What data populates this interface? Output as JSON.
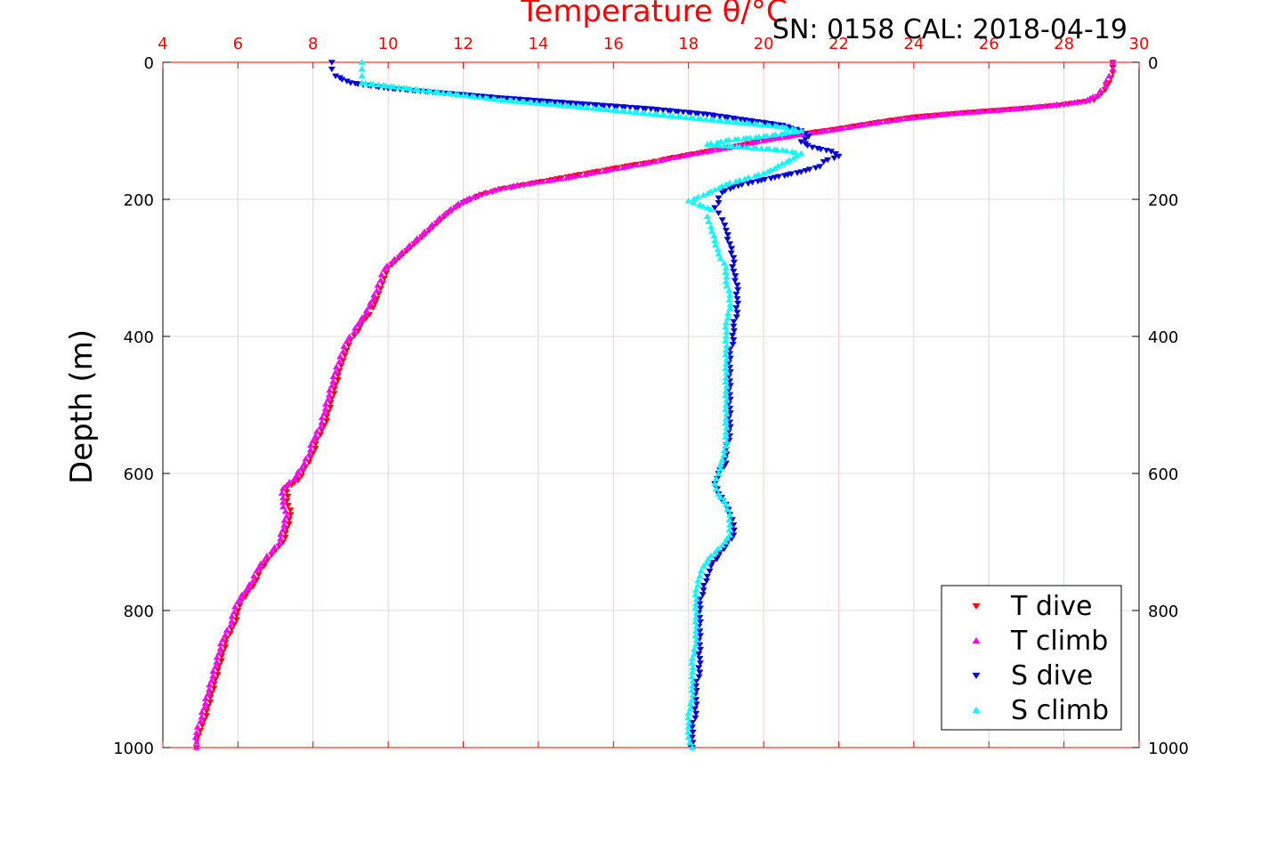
{
  "chart_data": {
    "type": "scatter",
    "title": "SN: 0158  CAL: 2018-04-19",
    "xlabel": "Temperature θ/°C",
    "ylabel": "Depth (m)",
    "xlim": [
      4,
      30
    ],
    "ylim": [
      0,
      1000
    ],
    "y_reversed": true,
    "xticks": [
      "4",
      "6",
      "8",
      "10",
      "12",
      "14",
      "16",
      "18",
      "20",
      "22",
      "24",
      "26",
      "28",
      "30"
    ],
    "yticks": [
      "0",
      "200",
      "400",
      "600",
      "800",
      "1000"
    ],
    "grid": true,
    "x_axis_position": "top",
    "legend_position": "bottom-right",
    "colors": {
      "axis_top": "#ff0000",
      "grid": "#dcdcdc",
      "grid_x": "#f5cccc"
    },
    "series": [
      {
        "name": "T dive",
        "color": "#ff0000",
        "marker": "triangle-down",
        "points": [
          [
            29.3,
            0
          ],
          [
            29.3,
            15
          ],
          [
            29.2,
            30
          ],
          [
            29.0,
            45
          ],
          [
            28.8,
            55
          ],
          [
            28.0,
            62
          ],
          [
            27.0,
            67
          ],
          [
            25.5,
            73
          ],
          [
            24.0,
            80
          ],
          [
            23.0,
            88
          ],
          [
            22.0,
            97
          ],
          [
            21.0,
            105
          ],
          [
            20.2,
            112
          ],
          [
            19.5,
            120
          ],
          [
            19.0,
            125
          ],
          [
            18.5,
            130
          ],
          [
            18.0,
            135
          ],
          [
            17.5,
            140
          ],
          [
            17.0,
            146
          ],
          [
            16.5,
            150
          ],
          [
            16.0,
            155
          ],
          [
            15.5,
            160
          ],
          [
            15.0,
            165
          ],
          [
            14.5,
            170
          ],
          [
            14.0,
            175
          ],
          [
            13.5,
            180
          ],
          [
            13.0,
            185
          ],
          [
            12.5,
            193
          ],
          [
            12.2,
            200
          ],
          [
            12.0,
            205
          ],
          [
            11.8,
            212
          ],
          [
            11.6,
            220
          ],
          [
            11.4,
            230
          ],
          [
            11.2,
            240
          ],
          [
            11.0,
            250
          ],
          [
            10.8,
            260
          ],
          [
            10.6,
            270
          ],
          [
            10.4,
            280
          ],
          [
            10.2,
            290
          ],
          [
            10.0,
            300
          ],
          [
            9.9,
            315
          ],
          [
            9.8,
            330
          ],
          [
            9.7,
            345
          ],
          [
            9.6,
            358
          ],
          [
            9.5,
            368
          ],
          [
            9.3,
            380
          ],
          [
            9.2,
            392
          ],
          [
            9.0,
            405
          ],
          [
            8.9,
            420
          ],
          [
            8.8,
            435
          ],
          [
            8.7,
            450
          ],
          [
            8.6,
            470
          ],
          [
            8.5,
            490
          ],
          [
            8.4,
            510
          ],
          [
            8.3,
            530
          ],
          [
            8.1,
            550
          ],
          [
            8.0,
            570
          ],
          [
            7.8,
            590
          ],
          [
            7.6,
            610
          ],
          [
            7.3,
            620
          ],
          [
            7.3,
            640
          ],
          [
            7.4,
            660
          ],
          [
            7.3,
            680
          ],
          [
            7.2,
            700
          ],
          [
            7.0,
            712
          ],
          [
            6.8,
            725
          ],
          [
            6.6,
            740
          ],
          [
            6.5,
            755
          ],
          [
            6.3,
            770
          ],
          [
            6.1,
            785
          ],
          [
            6.0,
            800
          ],
          [
            5.9,
            820
          ],
          [
            5.7,
            840
          ],
          [
            5.6,
            860
          ],
          [
            5.5,
            880
          ],
          [
            5.4,
            900
          ],
          [
            5.3,
            920
          ],
          [
            5.2,
            940
          ],
          [
            5.1,
            960
          ],
          [
            5.0,
            975
          ],
          [
            4.9,
            990
          ],
          [
            4.9,
            1000
          ]
        ]
      },
      {
        "name": "T climb",
        "color": "#ff00ff",
        "marker": "triangle-up",
        "points": [
          [
            29.3,
            0
          ],
          [
            29.3,
            10
          ],
          [
            29.2,
            20
          ],
          [
            29.1,
            35
          ],
          [
            28.9,
            48
          ],
          [
            28.5,
            57
          ],
          [
            27.5,
            64
          ],
          [
            26.5,
            69
          ],
          [
            25.0,
            75
          ],
          [
            23.8,
            82
          ],
          [
            22.8,
            90
          ],
          [
            21.8,
            99
          ],
          [
            20.9,
            106
          ],
          [
            20.0,
            114
          ],
          [
            19.4,
            121
          ],
          [
            18.8,
            127
          ],
          [
            18.2,
            133
          ],
          [
            17.6,
            139
          ],
          [
            17.1,
            145
          ],
          [
            16.6,
            150
          ],
          [
            16.1,
            155
          ],
          [
            15.6,
            160
          ],
          [
            15.1,
            165
          ],
          [
            14.6,
            170
          ],
          [
            14.1,
            174
          ],
          [
            13.6,
            178
          ],
          [
            13.1,
            183
          ],
          [
            12.6,
            190
          ],
          [
            12.3,
            196
          ],
          [
            12.0,
            203
          ],
          [
            11.8,
            210
          ],
          [
            11.5,
            222
          ],
          [
            11.3,
            232
          ],
          [
            11.1,
            242
          ],
          [
            10.9,
            252
          ],
          [
            10.7,
            262
          ],
          [
            10.5,
            272
          ],
          [
            10.3,
            282
          ],
          [
            10.1,
            292
          ],
          [
            9.9,
            302
          ],
          [
            9.8,
            318
          ],
          [
            9.7,
            333
          ],
          [
            9.6,
            346
          ],
          [
            9.5,
            357
          ],
          [
            9.4,
            368
          ],
          [
            9.2,
            382
          ],
          [
            9.1,
            394
          ],
          [
            8.9,
            407
          ],
          [
            8.8,
            422
          ],
          [
            8.7,
            437
          ],
          [
            8.6,
            452
          ],
          [
            8.5,
            472
          ],
          [
            8.4,
            492
          ],
          [
            8.3,
            512
          ],
          [
            8.2,
            532
          ],
          [
            8.0,
            552
          ],
          [
            7.9,
            572
          ],
          [
            7.7,
            592
          ],
          [
            7.5,
            608
          ],
          [
            7.2,
            622
          ],
          [
            7.2,
            642
          ],
          [
            7.3,
            662
          ],
          [
            7.2,
            682
          ],
          [
            7.1,
            702
          ],
          [
            6.9,
            714
          ],
          [
            6.7,
            727
          ],
          [
            6.5,
            742
          ],
          [
            6.4,
            757
          ],
          [
            6.2,
            772
          ],
          [
            6.0,
            787
          ],
          [
            5.9,
            802
          ],
          [
            5.8,
            822
          ],
          [
            5.6,
            842
          ],
          [
            5.5,
            862
          ],
          [
            5.4,
            882
          ],
          [
            5.3,
            902
          ],
          [
            5.2,
            922
          ],
          [
            5.1,
            942
          ],
          [
            5.0,
            962
          ],
          [
            4.9,
            978
          ],
          [
            4.9,
            992
          ],
          [
            4.9,
            1000
          ]
        ]
      },
      {
        "name": "S dive",
        "color": "#0000dd",
        "marker": "triangle-down",
        "points": [
          [
            8.5,
            0
          ],
          [
            8.5,
            10
          ],
          [
            8.6,
            20
          ],
          [
            9.0,
            30
          ],
          [
            10.0,
            38
          ],
          [
            11.5,
            45
          ],
          [
            13.0,
            52
          ],
          [
            15.0,
            60
          ],
          [
            17.0,
            68
          ],
          [
            18.5,
            76
          ],
          [
            19.5,
            84
          ],
          [
            20.5,
            92
          ],
          [
            21.0,
            100
          ],
          [
            21.2,
            108
          ],
          [
            21.0,
            116
          ],
          [
            21.3,
            124
          ],
          [
            21.8,
            130
          ],
          [
            22.0,
            137
          ],
          [
            21.6,
            145
          ],
          [
            21.5,
            152
          ],
          [
            21.0,
            160
          ],
          [
            20.3,
            168
          ],
          [
            19.7,
            175
          ],
          [
            19.2,
            182
          ],
          [
            18.9,
            190
          ],
          [
            18.8,
            198
          ],
          [
            18.8,
            205
          ],
          [
            18.7,
            212
          ],
          [
            18.8,
            220
          ],
          [
            18.9,
            230
          ],
          [
            19.0,
            245
          ],
          [
            19.1,
            265
          ],
          [
            19.2,
            285
          ],
          [
            19.2,
            305
          ],
          [
            19.3,
            325
          ],
          [
            19.3,
            345
          ],
          [
            19.3,
            365
          ],
          [
            19.2,
            385
          ],
          [
            19.2,
            405
          ],
          [
            19.1,
            425
          ],
          [
            19.1,
            445
          ],
          [
            19.1,
            465
          ],
          [
            19.1,
            485
          ],
          [
            19.1,
            505
          ],
          [
            19.1,
            525
          ],
          [
            19.1,
            545
          ],
          [
            19.0,
            565
          ],
          [
            19.0,
            585
          ],
          [
            18.8,
            600
          ],
          [
            18.7,
            615
          ],
          [
            18.8,
            630
          ],
          [
            19.0,
            645
          ],
          [
            19.1,
            660
          ],
          [
            19.2,
            675
          ],
          [
            19.2,
            690
          ],
          [
            19.0,
            705
          ],
          [
            18.8,
            720
          ],
          [
            18.6,
            735
          ],
          [
            18.5,
            750
          ],
          [
            18.4,
            770
          ],
          [
            18.3,
            790
          ],
          [
            18.3,
            810
          ],
          [
            18.3,
            830
          ],
          [
            18.3,
            850
          ],
          [
            18.3,
            870
          ],
          [
            18.3,
            890
          ],
          [
            18.2,
            910
          ],
          [
            18.2,
            930
          ],
          [
            18.2,
            950
          ],
          [
            18.1,
            970
          ],
          [
            18.1,
            985
          ],
          [
            18.1,
            1000
          ]
        ]
      },
      {
        "name": "S climb",
        "color": "#00ffff",
        "marker": "triangle-up",
        "points": [
          [
            9.3,
            0
          ],
          [
            9.3,
            10
          ],
          [
            9.3,
            20
          ],
          [
            9.3,
            30
          ],
          [
            10.5,
            38
          ],
          [
            12.0,
            48
          ],
          [
            13.0,
            55
          ],
          [
            14.5,
            62
          ],
          [
            16.0,
            70
          ],
          [
            17.5,
            78
          ],
          [
            19.0,
            86
          ],
          [
            20.5,
            94
          ],
          [
            21.0,
            100
          ],
          [
            20.0,
            108
          ],
          [
            19.0,
            114
          ],
          [
            18.5,
            120
          ],
          [
            19.5,
            124
          ],
          [
            20.5,
            128
          ],
          [
            21.0,
            133
          ],
          [
            20.8,
            140
          ],
          [
            20.5,
            148
          ],
          [
            20.3,
            155
          ],
          [
            20.0,
            162
          ],
          [
            19.5,
            170
          ],
          [
            19.0,
            178
          ],
          [
            18.7,
            186
          ],
          [
            18.4,
            194
          ],
          [
            18.0,
            202
          ],
          [
            18.3,
            208
          ],
          [
            18.6,
            215
          ],
          [
            18.5,
            225
          ],
          [
            18.6,
            240
          ],
          [
            18.7,
            260
          ],
          [
            18.8,
            280
          ],
          [
            19.0,
            300
          ],
          [
            19.0,
            320
          ],
          [
            19.1,
            340
          ],
          [
            19.1,
            360
          ],
          [
            19.0,
            380
          ],
          [
            19.0,
            400
          ],
          [
            19.0,
            420
          ],
          [
            19.0,
            440
          ],
          [
            19.0,
            460
          ],
          [
            19.0,
            480
          ],
          [
            19.0,
            500
          ],
          [
            19.0,
            520
          ],
          [
            19.0,
            540
          ],
          [
            19.0,
            560
          ],
          [
            18.9,
            580
          ],
          [
            18.8,
            600
          ],
          [
            18.7,
            615
          ],
          [
            18.8,
            630
          ],
          [
            19.0,
            645
          ],
          [
            19.1,
            660
          ],
          [
            19.1,
            675
          ],
          [
            19.1,
            690
          ],
          [
            18.9,
            705
          ],
          [
            18.6,
            720
          ],
          [
            18.4,
            735
          ],
          [
            18.3,
            750
          ],
          [
            18.2,
            770
          ],
          [
            18.2,
            790
          ],
          [
            18.2,
            810
          ],
          [
            18.2,
            830
          ],
          [
            18.2,
            850
          ],
          [
            18.1,
            870
          ],
          [
            18.1,
            890
          ],
          [
            18.1,
            910
          ],
          [
            18.1,
            930
          ],
          [
            18.0,
            950
          ],
          [
            18.0,
            970
          ],
          [
            18.0,
            985
          ],
          [
            18.1,
            1000
          ]
        ]
      }
    ]
  }
}
